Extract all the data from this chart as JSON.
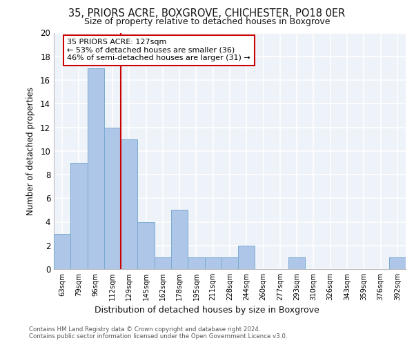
{
  "title1": "35, PRIORS ACRE, BOXGROVE, CHICHESTER, PO18 0ER",
  "title2": "Size of property relative to detached houses in Boxgrove",
  "xlabel": "Distribution of detached houses by size in Boxgrove",
  "ylabel": "Number of detached properties",
  "categories": [
    "63sqm",
    "79sqm",
    "96sqm",
    "112sqm",
    "129sqm",
    "145sqm",
    "162sqm",
    "178sqm",
    "195sqm",
    "211sqm",
    "228sqm",
    "244sqm",
    "260sqm",
    "277sqm",
    "293sqm",
    "310sqm",
    "326sqm",
    "343sqm",
    "359sqm",
    "376sqm",
    "392sqm"
  ],
  "values": [
    3,
    9,
    17,
    12,
    11,
    4,
    1,
    5,
    1,
    1,
    1,
    2,
    0,
    0,
    1,
    0,
    0,
    0,
    0,
    0,
    1
  ],
  "bar_color": "#aec6e8",
  "bar_edge_color": "#7aaad0",
  "vline_position": 3.5,
  "vline_color": "#cc0000",
  "annotation_line1": "35 PRIORS ACRE: 127sqm",
  "annotation_line2": "← 53% of detached houses are smaller (36)",
  "annotation_line3": "46% of semi-detached houses are larger (31) →",
  "annotation_box_color": "#ffffff",
  "annotation_box_edge": "#cc0000",
  "ylim": [
    0,
    20
  ],
  "yticks": [
    0,
    2,
    4,
    6,
    8,
    10,
    12,
    14,
    16,
    18,
    20
  ],
  "footer1": "Contains HM Land Registry data © Crown copyright and database right 2024.",
  "footer2": "Contains public sector information licensed under the Open Government Licence v3.0.",
  "background_color": "#eef2f9"
}
